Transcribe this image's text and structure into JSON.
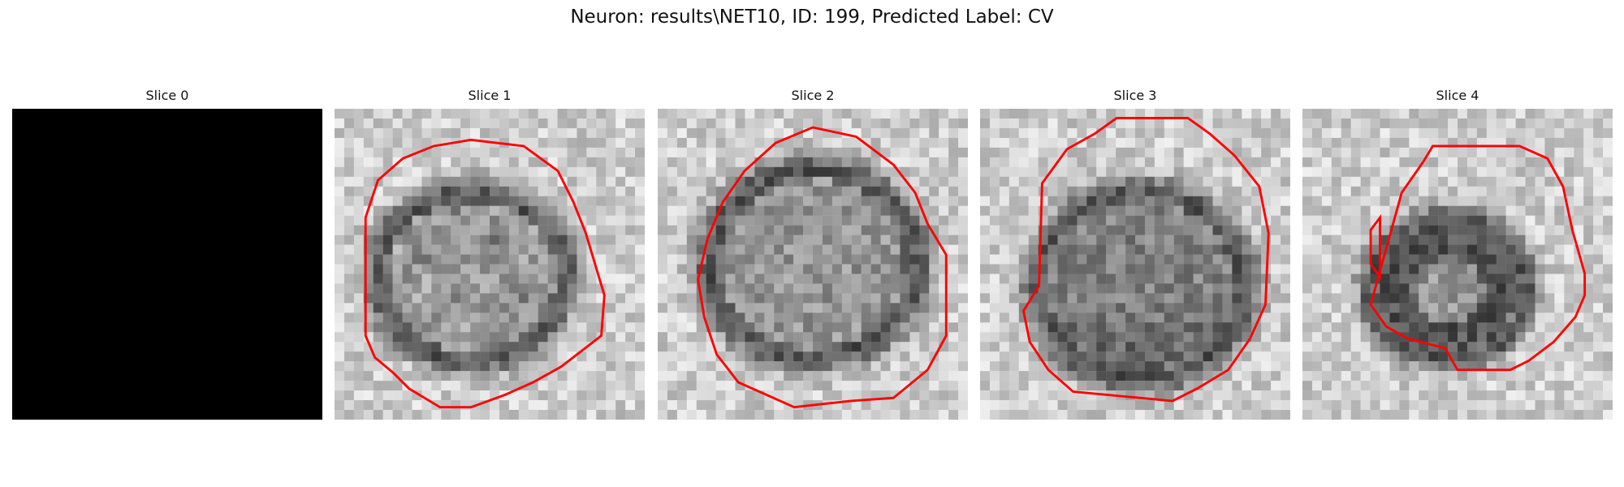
{
  "figure": {
    "title": "Neuron: results\\NET10, ID: 199, Predicted Label: CV"
  },
  "panels": [
    {
      "title": "Slice 0",
      "blank": true
    },
    {
      "title": "Slice 1",
      "blank": false
    },
    {
      "title": "Slice 2",
      "blank": false
    },
    {
      "title": "Slice 3",
      "blank": false
    },
    {
      "title": "Slice 4",
      "blank": false
    }
  ],
  "colors": {
    "contour": "#ff0000",
    "background": "#ffffff"
  }
}
